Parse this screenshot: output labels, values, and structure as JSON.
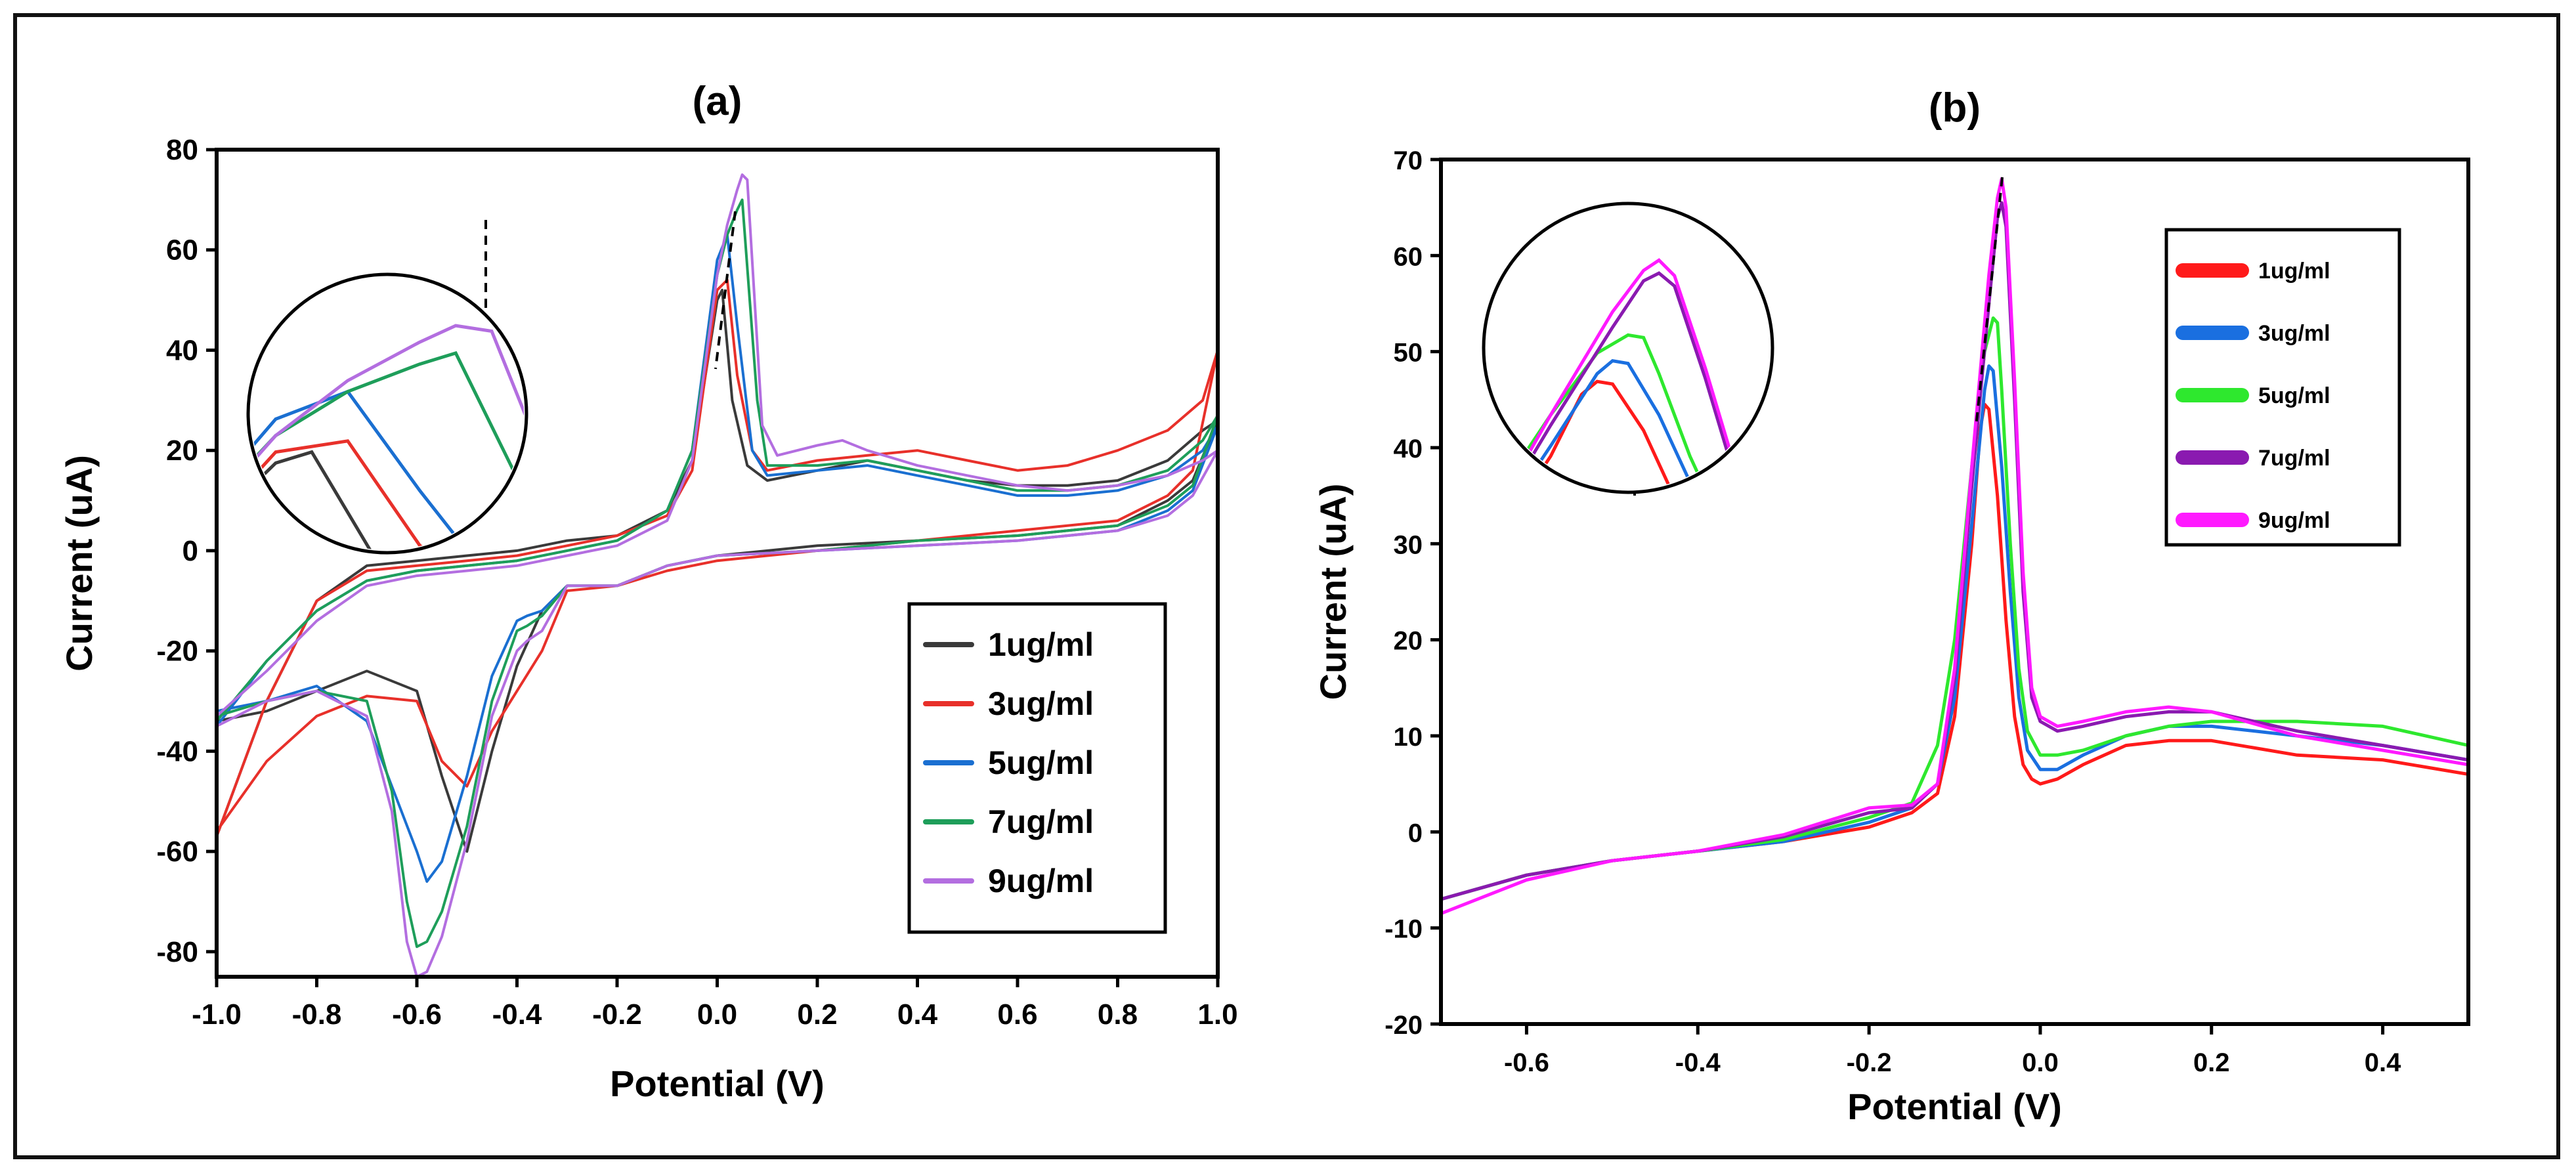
{
  "chart_data": [
    {
      "type": "line",
      "title": "(a)",
      "xlabel": "Potential (V)",
      "ylabel": "Current (uA)",
      "xlim": [
        -1.0,
        1.0
      ],
      "ylim": [
        -85,
        80
      ],
      "xticks": [
        -1.0,
        -0.8,
        -0.6,
        -0.4,
        -0.2,
        0.0,
        0.2,
        0.4,
        0.6,
        0.8,
        1.0
      ],
      "xtick_labels": [
        "-1.0",
        "-0.8",
        "-0.6",
        "-0.4",
        "-0.2",
        "0.0",
        "0.2",
        "0.4",
        "0.6",
        "0.8",
        "1.0"
      ],
      "yticks": [
        -80,
        -60,
        -40,
        -20,
        0,
        20,
        40,
        60,
        80
      ],
      "ytick_labels": [
        "-80",
        "-60",
        "-40",
        "-20",
        "0",
        "20",
        "40",
        "60",
        "80"
      ],
      "legend_position": "bottom-right",
      "series": [
        {
          "name": "1ug/ml",
          "color": "#3a3a3a",
          "x": [
            -1.0,
            -0.9,
            -0.8,
            -0.7,
            -0.6,
            -0.5,
            -0.4,
            -0.3,
            -0.2,
            -0.1,
            -0.05,
            0.0,
            0.01,
            0.03,
            0.06,
            0.1,
            0.2,
            0.3,
            0.4,
            0.5,
            0.6,
            0.7,
            0.8,
            0.9,
            0.97,
            1.0,
            0.95,
            0.9,
            0.8,
            0.6,
            0.4,
            0.2,
            0.0,
            -0.1,
            -0.2,
            -0.3,
            -0.35,
            -0.4,
            -0.45,
            -0.5,
            -0.55,
            -0.6,
            -0.7,
            -0.8,
            -0.9,
            -1.0
          ],
          "y": [
            -57,
            -30,
            -10,
            -3,
            -2,
            -1,
            0,
            2,
            3,
            8,
            18,
            50,
            52,
            30,
            17,
            14,
            16,
            18,
            16,
            14,
            13,
            13,
            14,
            18,
            24,
            26,
            14,
            10,
            5,
            3,
            2,
            1,
            -1,
            -3,
            -7,
            -7,
            -12,
            -23,
            -40,
            -60,
            -45,
            -28,
            -24,
            -28,
            -32,
            -34
          ]
        },
        {
          "name": "3ug/ml",
          "color": "#e8302a",
          "x": [
            -1.0,
            -0.9,
            -0.8,
            -0.7,
            -0.6,
            -0.5,
            -0.4,
            -0.3,
            -0.2,
            -0.1,
            -0.05,
            0.0,
            0.02,
            0.04,
            0.07,
            0.1,
            0.2,
            0.3,
            0.4,
            0.5,
            0.6,
            0.7,
            0.8,
            0.9,
            0.97,
            1.0,
            0.95,
            0.9,
            0.8,
            0.6,
            0.4,
            0.2,
            0.0,
            -0.1,
            -0.2,
            -0.3,
            -0.35,
            -0.4,
            -0.45,
            -0.5,
            -0.55,
            -0.6,
            -0.7,
            -0.8,
            -0.9,
            -1.0
          ],
          "y": [
            -57,
            -30,
            -10,
            -4,
            -3,
            -2,
            -1,
            1,
            3,
            7,
            16,
            52,
            54,
            35,
            20,
            16,
            18,
            19,
            20,
            18,
            16,
            17,
            20,
            24,
            30,
            40,
            16,
            11,
            6,
            4,
            2,
            0,
            -2,
            -4,
            -7,
            -8,
            -20,
            -28,
            -36,
            -47,
            -42,
            -30,
            -29,
            -33,
            -42,
            -56
          ]
        },
        {
          "name": "5ug/ml",
          "color": "#1a6fd1",
          "x": [
            -1.0,
            -0.9,
            -0.8,
            -0.7,
            -0.6,
            -0.5,
            -0.4,
            -0.3,
            -0.2,
            -0.1,
            -0.05,
            0.0,
            0.02,
            0.04,
            0.07,
            0.1,
            0.2,
            0.3,
            0.4,
            0.5,
            0.6,
            0.7,
            0.8,
            0.9,
            0.97,
            1.0,
            0.95,
            0.9,
            0.8,
            0.6,
            0.4,
            0.2,
            0.0,
            -0.1,
            -0.2,
            -0.3,
            -0.35,
            -0.38,
            -0.4,
            -0.45,
            -0.5,
            -0.55,
            -0.58,
            -0.6,
            -0.7,
            -0.8,
            -0.9,
            -1.0
          ],
          "y": [
            -35,
            -22,
            -12,
            -6,
            -4,
            -3,
            -2,
            0,
            2,
            8,
            20,
            58,
            63,
            45,
            20,
            15,
            16,
            17,
            15,
            13,
            11,
            11,
            12,
            15,
            20,
            25,
            12,
            8,
            4,
            2,
            1,
            0,
            -1,
            -3,
            -7,
            -7,
            -12,
            -13,
            -14,
            -25,
            -45,
            -62,
            -66,
            -60,
            -34,
            -27,
            -30,
            -32
          ]
        },
        {
          "name": "7ug/ml",
          "color": "#1e9e5a",
          "x": [
            -1.0,
            -0.9,
            -0.8,
            -0.7,
            -0.6,
            -0.5,
            -0.4,
            -0.3,
            -0.2,
            -0.1,
            -0.05,
            0.0,
            0.02,
            0.04,
            0.05,
            0.08,
            0.1,
            0.2,
            0.3,
            0.4,
            0.5,
            0.6,
            0.7,
            0.8,
            0.9,
            0.97,
            1.0,
            0.95,
            0.9,
            0.8,
            0.6,
            0.4,
            0.2,
            0.0,
            -0.1,
            -0.2,
            -0.3,
            -0.35,
            -0.38,
            -0.4,
            -0.45,
            -0.5,
            -0.55,
            -0.58,
            -0.6,
            -0.62,
            -0.65,
            -0.7,
            -0.8,
            -0.9,
            -1.0
          ],
          "y": [
            -34,
            -22,
            -12,
            -6,
            -4,
            -3,
            -2,
            0,
            2,
            8,
            20,
            55,
            63,
            68,
            70,
            30,
            17,
            17,
            18,
            16,
            14,
            12,
            12,
            13,
            16,
            22,
            27,
            13,
            9,
            5,
            3,
            2,
            0,
            -1,
            -3,
            -7,
            -7,
            -13,
            -15,
            -16,
            -30,
            -55,
            -72,
            -78,
            -79,
            -70,
            -48,
            -30,
            -28,
            -30,
            -33
          ]
        },
        {
          "name": "9ug/ml",
          "color": "#b36ee0",
          "x": [
            -1.0,
            -0.9,
            -0.8,
            -0.7,
            -0.6,
            -0.5,
            -0.4,
            -0.3,
            -0.2,
            -0.1,
            -0.05,
            0.0,
            0.02,
            0.04,
            0.05,
            0.06,
            0.09,
            0.12,
            0.2,
            0.25,
            0.3,
            0.4,
            0.5,
            0.6,
            0.7,
            0.8,
            0.9,
            0.97,
            1.0,
            0.95,
            0.9,
            0.8,
            0.6,
            0.4,
            0.2,
            0.0,
            -0.1,
            -0.2,
            -0.3,
            -0.35,
            -0.38,
            -0.4,
            -0.45,
            -0.5,
            -0.55,
            -0.58,
            -0.6,
            -0.62,
            -0.65,
            -0.7,
            -0.8,
            -0.9,
            -1.0
          ],
          "y": [
            -33,
            -24,
            -14,
            -7,
            -5,
            -4,
            -3,
            -1,
            1,
            6,
            18,
            55,
            65,
            72,
            75,
            74,
            25,
            19,
            21,
            22,
            20,
            17,
            15,
            13,
            12,
            13,
            15,
            18,
            20,
            11,
            7,
            4,
            2,
            1,
            0,
            -1,
            -3,
            -7,
            -7,
            -16,
            -18,
            -20,
            -33,
            -58,
            -77,
            -84,
            -85,
            -78,
            -52,
            -33,
            -28,
            -30,
            -35
          ]
        }
      ]
    },
    {
      "type": "line",
      "title": "(b)",
      "xlabel": "Potential (V)",
      "ylabel": "Current (uA)",
      "xlim": [
        -0.7,
        0.5
      ],
      "ylim": [
        -20,
        70
      ],
      "xticks": [
        -0.6,
        -0.4,
        -0.2,
        0.0,
        0.2,
        0.4
      ],
      "xtick_labels": [
        "-0.6",
        "-0.4",
        "-0.2",
        "0.0",
        "0.2",
        "0.4"
      ],
      "yticks": [
        -20,
        -10,
        0,
        10,
        20,
        30,
        40,
        50,
        60,
        70
      ],
      "ytick_labels": [
        "-20",
        "-10",
        "0",
        "10",
        "20",
        "30",
        "40",
        "50",
        "60",
        "70"
      ],
      "legend_position": "top-right",
      "series": [
        {
          "name": "1ug/ml",
          "color": "#ff1a1a",
          "x": [
            -0.7,
            -0.6,
            -0.5,
            -0.4,
            -0.3,
            -0.2,
            -0.15,
            -0.12,
            -0.1,
            -0.08,
            -0.07,
            -0.065,
            -0.06,
            -0.05,
            -0.04,
            -0.03,
            -0.02,
            -0.01,
            0.0,
            0.02,
            0.05,
            0.1,
            0.15,
            0.2,
            0.3,
            0.4,
            0.5
          ],
          "y": [
            -7,
            -4.5,
            -3,
            -2,
            -1,
            0.5,
            2,
            4,
            12,
            30,
            42,
            44.5,
            44,
            35,
            22,
            12,
            7,
            5.5,
            5,
            5.5,
            7,
            9,
            9.5,
            9.5,
            8,
            7.5,
            6
          ]
        },
        {
          "name": "3ug/ml",
          "color": "#1a6fe0",
          "x": [
            -0.7,
            -0.6,
            -0.5,
            -0.4,
            -0.3,
            -0.2,
            -0.15,
            -0.12,
            -0.1,
            -0.08,
            -0.065,
            -0.06,
            -0.055,
            -0.045,
            -0.035,
            -0.025,
            -0.015,
            0.0,
            0.02,
            0.05,
            0.1,
            0.15,
            0.2,
            0.3,
            0.4,
            0.5
          ],
          "y": [
            -7,
            -4.5,
            -3,
            -2,
            -1,
            1,
            2.5,
            5,
            14,
            32,
            46,
            48.5,
            48,
            38,
            25,
            14,
            8.5,
            6.5,
            6.5,
            8,
            10,
            11,
            11,
            10,
            9,
            7.5
          ]
        },
        {
          "name": "5ug/ml",
          "color": "#2ee82e",
          "x": [
            -0.7,
            -0.6,
            -0.5,
            -0.4,
            -0.3,
            -0.2,
            -0.15,
            -0.12,
            -0.1,
            -0.08,
            -0.065,
            -0.055,
            -0.05,
            -0.045,
            -0.035,
            -0.025,
            -0.015,
            0.0,
            0.02,
            0.05,
            0.1,
            0.15,
            0.2,
            0.3,
            0.4,
            0.5
          ],
          "y": [
            -7,
            -4.5,
            -3,
            -2,
            -0.8,
            1.5,
            3,
            9,
            20,
            38,
            50,
            53.5,
            53,
            46,
            30,
            17,
            10.5,
            8,
            8,
            8.5,
            10,
            11,
            11.5,
            11.5,
            11,
            9
          ]
        },
        {
          "name": "7ug/ml",
          "color": "#8a1ab0",
          "x": [
            -0.7,
            -0.6,
            -0.5,
            -0.4,
            -0.3,
            -0.2,
            -0.15,
            -0.12,
            -0.1,
            -0.08,
            -0.06,
            -0.05,
            -0.045,
            -0.04,
            -0.03,
            -0.02,
            -0.01,
            0.0,
            0.02,
            0.05,
            0.1,
            0.15,
            0.2,
            0.3,
            0.4,
            0.5
          ],
          "y": [
            -7,
            -4.5,
            -3,
            -2,
            -0.5,
            2,
            2.5,
            5,
            16,
            36,
            55,
            64,
            65.5,
            63,
            45,
            25,
            14,
            11.5,
            10.5,
            11,
            12,
            12.5,
            12.5,
            10.5,
            9,
            7.5
          ]
        },
        {
          "name": "9ug/ml",
          "color": "#ff1aff",
          "x": [
            -0.7,
            -0.6,
            -0.5,
            -0.4,
            -0.3,
            -0.2,
            -0.15,
            -0.12,
            -0.1,
            -0.08,
            -0.06,
            -0.05,
            -0.045,
            -0.04,
            -0.03,
            -0.02,
            -0.01,
            0.0,
            0.02,
            0.05,
            0.1,
            0.15,
            0.2,
            0.3,
            0.4,
            0.5
          ],
          "y": [
            -8.5,
            -5,
            -3,
            -2,
            -0.3,
            2.5,
            2.8,
            5,
            17,
            38,
            58,
            66,
            68,
            65,
            47,
            27,
            15,
            12,
            11,
            11.5,
            12.5,
            13,
            12.5,
            10,
            8.5,
            7
          ]
        }
      ]
    }
  ]
}
